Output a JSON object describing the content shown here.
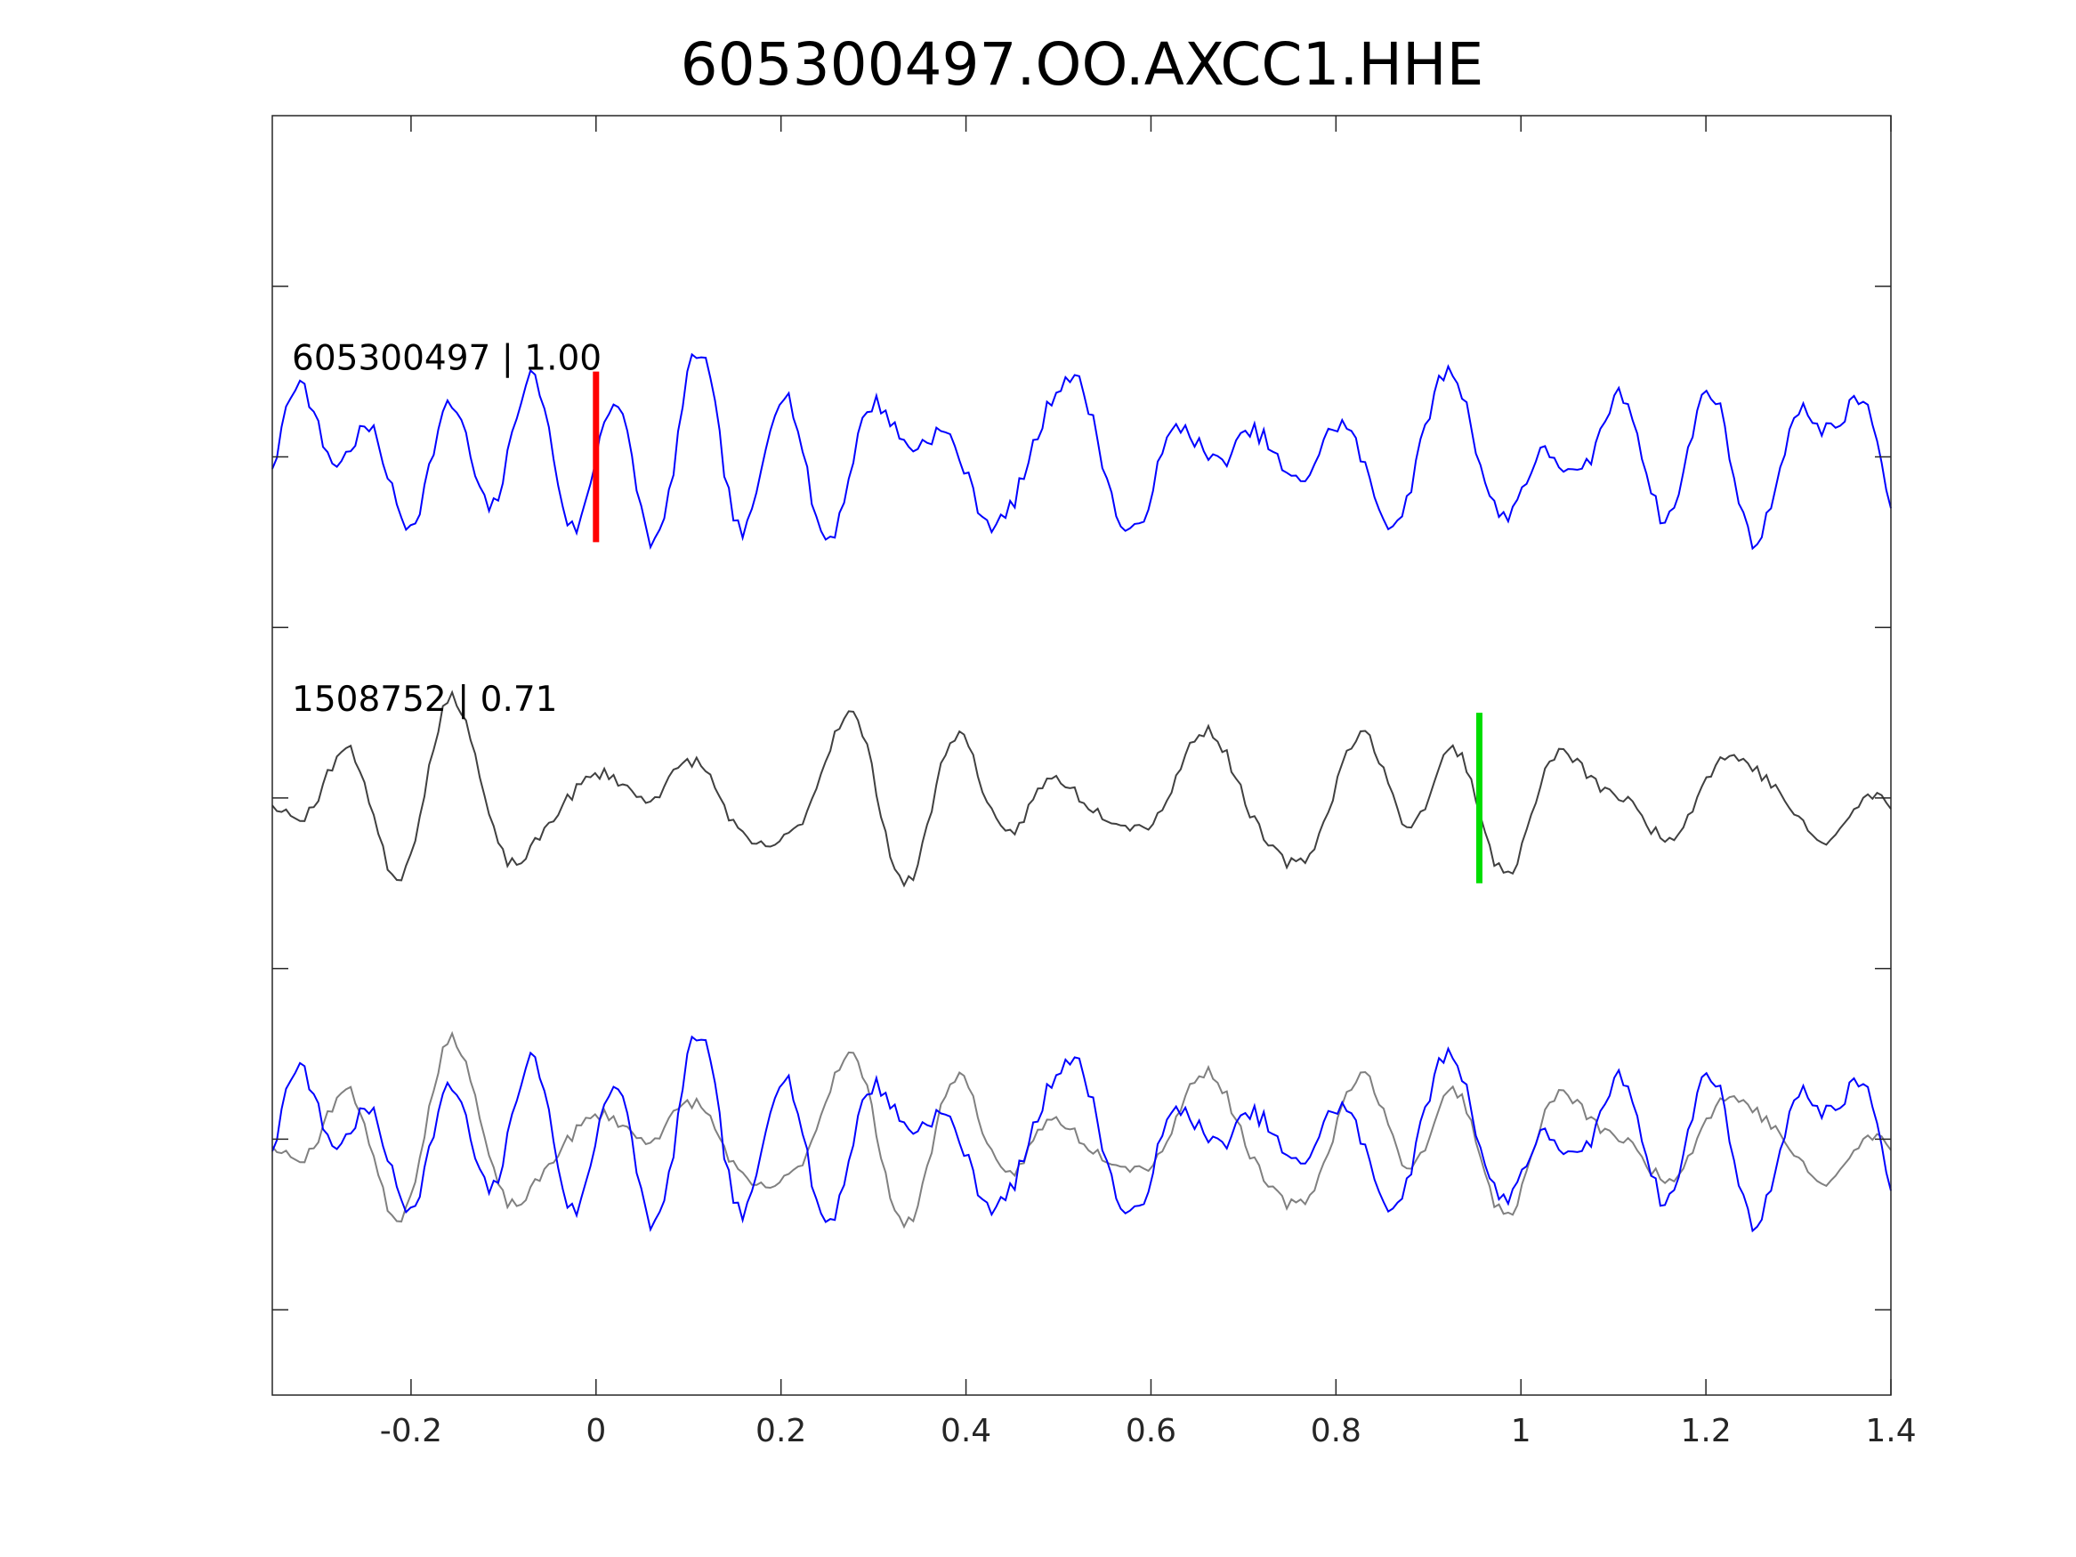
{
  "chart_data": {
    "type": "line",
    "title": "605300497.OO.AXCC1.HHE",
    "xlabel": "",
    "ylabel": "",
    "xlim": [
      -0.35,
      1.4
    ],
    "xticks": [
      -0.2,
      0,
      0.2,
      0.4,
      0.6,
      0.8,
      1,
      1.2,
      1.4
    ],
    "xtick_labels": [
      "-0.2",
      "0",
      "0.2",
      "0.4",
      "0.6",
      "0.8",
      "1",
      "1.2",
      "1.4"
    ],
    "ylim": [
      0,
      7.5
    ],
    "yticks": [
      0.5,
      1.5,
      2.5,
      3.5,
      4.5,
      5.5,
      6.5
    ],
    "grid": false,
    "legend": "none",
    "sample_count": 352,
    "traces": [
      {
        "label": "605300497 | 1.00",
        "color": "#0000ff",
        "offset": 5.5,
        "amp": 0.6,
        "seed": 7,
        "row": "top"
      },
      {
        "label": "1508752 | 0.71",
        "color": "#404040",
        "offset": 3.5,
        "amp": 0.62,
        "seed": 23,
        "row": "middle"
      }
    ],
    "overlay": {
      "offset": 1.5,
      "colors": [
        "#808080",
        "#0000ff"
      ]
    },
    "markers": [
      {
        "x": 0.0,
        "center": 5.5,
        "half_height": 0.5,
        "color": "#ff0000"
      },
      {
        "x": 0.955,
        "center": 3.5,
        "half_height": 0.5,
        "color": "#00dd00"
      }
    ]
  }
}
